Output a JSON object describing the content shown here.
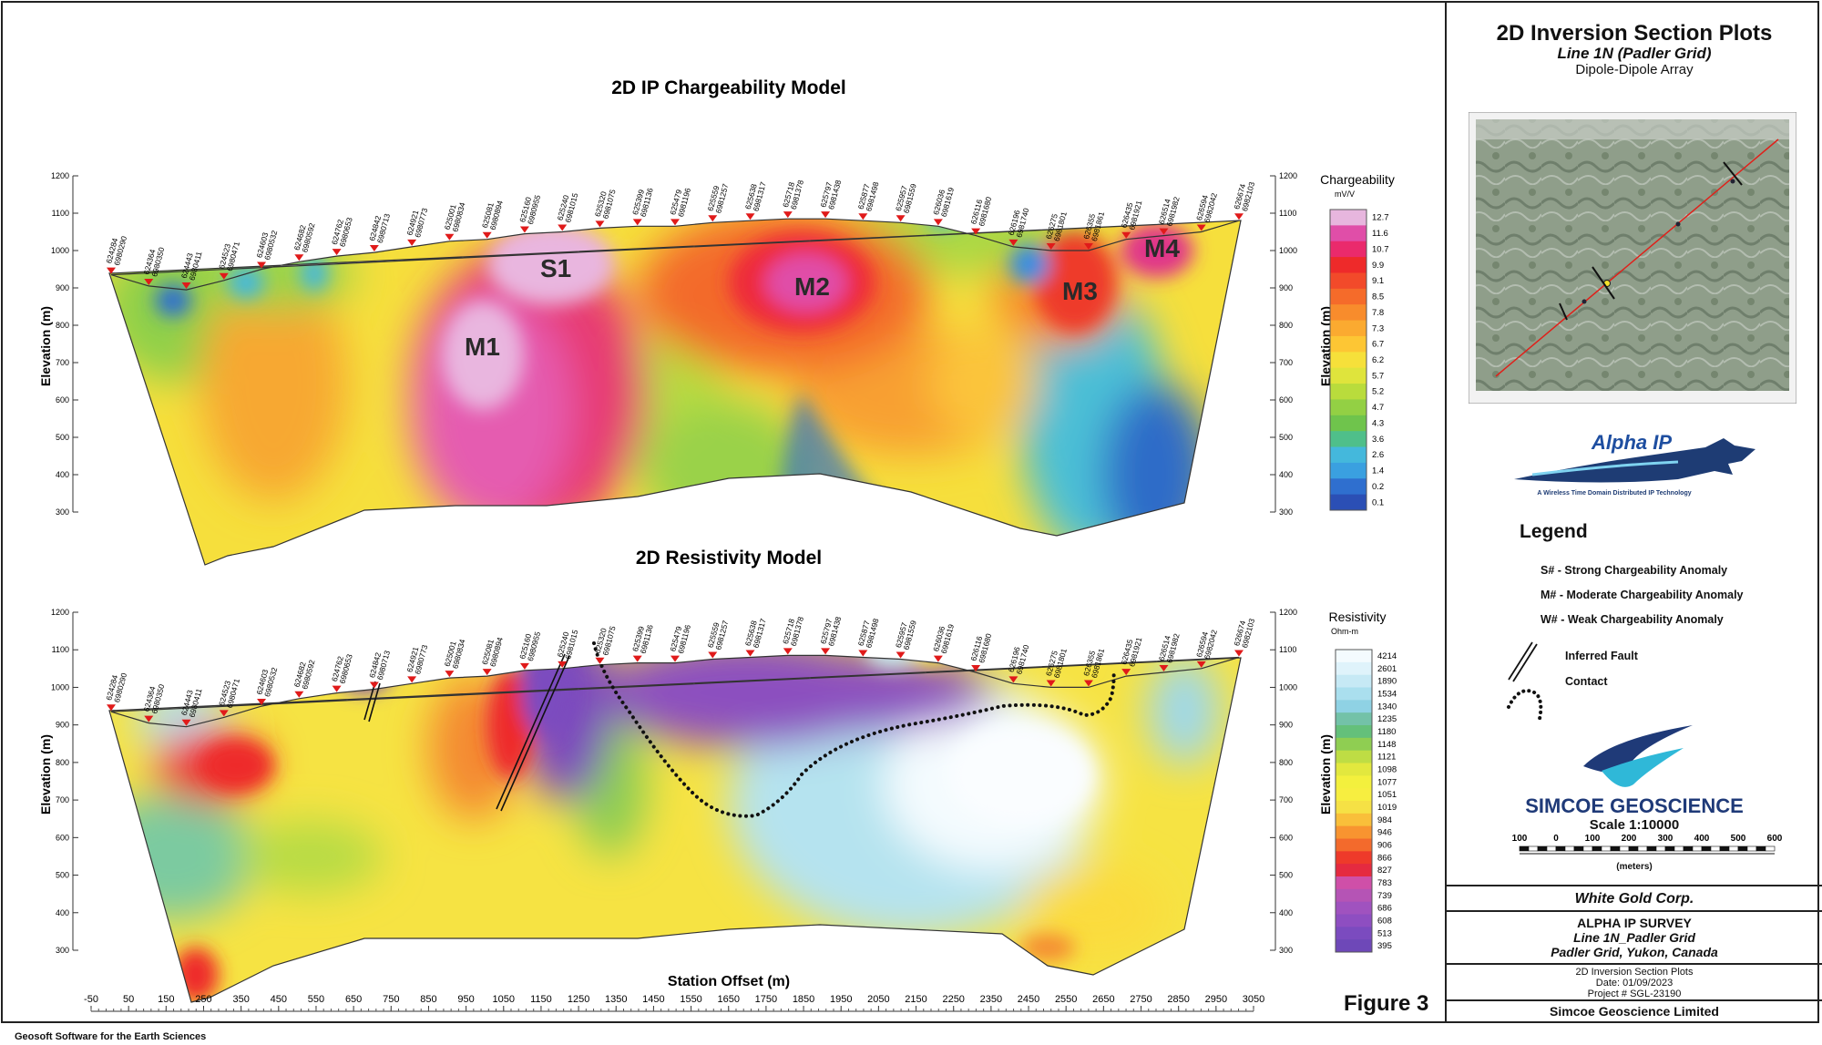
{
  "titles": {
    "chargeability": "2D IP Chargeability Model",
    "resistivity": "2D Resistivity Model",
    "station_offset": "Station Offset (m)",
    "elevation_label": "Elevation (m)"
  },
  "elevation_ticks": [
    "1200",
    "1100",
    "1000",
    "900",
    "800",
    "700",
    "600",
    "500",
    "400",
    "300"
  ],
  "stations": [
    {
      "e": "624284",
      "n": "6980290"
    },
    {
      "e": "624364",
      "n": "6980350"
    },
    {
      "e": "624443",
      "n": "6980411"
    },
    {
      "e": "624523",
      "n": "6980471"
    },
    {
      "e": "624603",
      "n": "6980532"
    },
    {
      "e": "624682",
      "n": "6980592"
    },
    {
      "e": "624762",
      "n": "6980653"
    },
    {
      "e": "624842",
      "n": "6980713"
    },
    {
      "e": "624921",
      "n": "6980773"
    },
    {
      "e": "625001",
      "n": "6980834"
    },
    {
      "e": "625081",
      "n": "6980894"
    },
    {
      "e": "625160",
      "n": "6980955"
    },
    {
      "e": "625240",
      "n": "6981015"
    },
    {
      "e": "625320",
      "n": "6981075"
    },
    {
      "e": "625399",
      "n": "6981136"
    },
    {
      "e": "625479",
      "n": "6981196"
    },
    {
      "e": "625559",
      "n": "6981257"
    },
    {
      "e": "625638",
      "n": "6981317"
    },
    {
      "e": "625718",
      "n": "6981378"
    },
    {
      "e": "625797",
      "n": "6981438"
    },
    {
      "e": "625877",
      "n": "6981498"
    },
    {
      "e": "625957",
      "n": "6981559"
    },
    {
      "e": "626036",
      "n": "6981619"
    },
    {
      "e": "626116",
      "n": "6981680"
    },
    {
      "e": "626196",
      "n": "6981740"
    },
    {
      "e": "626275",
      "n": "6981801"
    },
    {
      "e": "626355",
      "n": "6981861"
    },
    {
      "e": "626435",
      "n": "6981921"
    },
    {
      "e": "626514",
      "n": "6981982"
    },
    {
      "e": "626594",
      "n": "6982042"
    },
    {
      "e": "626674",
      "n": "6982103"
    }
  ],
  "x_ticks": [
    "-50",
    "50",
    "150",
    "250",
    "350",
    "450",
    "550",
    "650",
    "750",
    "850",
    "950",
    "1050",
    "1150",
    "1250",
    "1350",
    "1450",
    "1550",
    "1650",
    "1750",
    "1850",
    "1950",
    "2050",
    "2150",
    "2250",
    "2350",
    "2450",
    "2550",
    "2650",
    "2750",
    "2850",
    "2950",
    "3050"
  ],
  "anomaly_labels": [
    "S1",
    "M1",
    "M2",
    "M3",
    "M4"
  ],
  "chargeability_scale": {
    "title": "Chargeability",
    "unit": "mV/V",
    "values": [
      "12.7",
      "11.6",
      "10.7",
      "9.9",
      "9.1",
      "8.5",
      "7.8",
      "7.3",
      "6.7",
      "6.2",
      "5.7",
      "5.2",
      "4.7",
      "4.3",
      "3.6",
      "2.6",
      "1.4",
      "0.2",
      "0.1"
    ],
    "colors": [
      "#e7b6de",
      "#e04ea8",
      "#ea2a6c",
      "#ee2a2a",
      "#f24a2a",
      "#f56b2a",
      "#f88c2c",
      "#fbaa30",
      "#fdc634",
      "#f6e03a",
      "#dfe43c",
      "#b9dc3c",
      "#93d044",
      "#6fc44c",
      "#4fbf8a",
      "#44b8dc",
      "#3aa0e0",
      "#2f6fcf",
      "#2b4fb5"
    ]
  },
  "resistivity_scale": {
    "title": "Resistivity",
    "unit": "Ohm-m",
    "values": [
      "4214",
      "2601",
      "1890",
      "1534",
      "1340",
      "1235",
      "1180",
      "1148",
      "1121",
      "1098",
      "1077",
      "1051",
      "1019",
      "984",
      "946",
      "906",
      "866",
      "827",
      "783",
      "739",
      "686",
      "608",
      "513",
      "395"
    ],
    "colors": [
      "#f4fbfe",
      "#dff3fb",
      "#c6e9f5",
      "#aadfee",
      "#8fd2e4",
      "#73c2a8",
      "#64c07a",
      "#8fce52",
      "#bedd44",
      "#e2e83e",
      "#f3f03d",
      "#f7ee40",
      "#f6e145",
      "#f9bf3a",
      "#f89430",
      "#f36a2c",
      "#ee3a2a",
      "#e52a40",
      "#cf4fa8",
      "#b554b5",
      "#a052bf",
      "#8e4ec1",
      "#7b4bbf",
      "#6e48b8"
    ]
  },
  "right_panel": {
    "title": "2D Inversion Section Plots",
    "subtitle": "Line 1N (Padler Grid)",
    "array": "Dipole-Dipole Array",
    "logo_alpha": "Alpha IP",
    "logo_alpha_tag": "A Wireless Time Domain Distributed IP Technology",
    "legend_title": "Legend",
    "legend": [
      "S# - Strong Chargeability Anomaly",
      "M# - Moderate Chargeability Anomaly",
      "W# - Weak Chargeability Anomaly",
      "Inferred Fault",
      "Contact"
    ],
    "company_logo": "SIMCOE GEOSCIENCE",
    "scale_text": "Scale 1:10000",
    "scale_ticks": [
      "100",
      "0",
      "100",
      "200",
      "300",
      "400",
      "500",
      "600"
    ],
    "scale_unit": "(meters)",
    "client": "White Gold Corp.",
    "survey": "ALPHA IP SURVEY",
    "line": "Line 1N_Padler Grid",
    "location": "Padler Grid, Yukon, Canada",
    "plot_type": "2D Inversion Section Plots",
    "date": "Date: 01/09/2023",
    "project": "Project # SGL-23190",
    "company": "Simcoe Geoscience Limited"
  },
  "figure_label": "Figure 3",
  "footer": "Geosoft Software for the Earth Sciences"
}
